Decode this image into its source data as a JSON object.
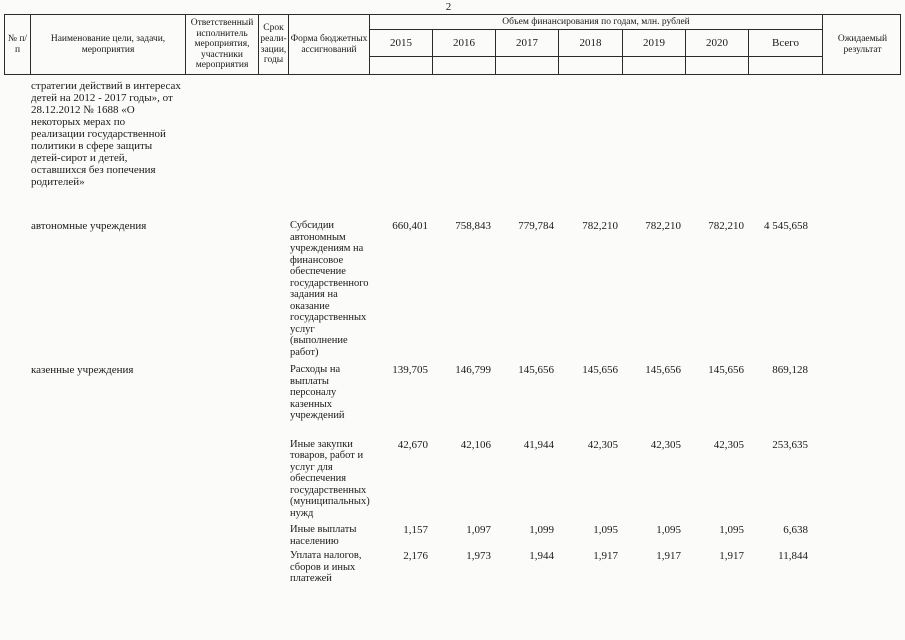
{
  "page": {
    "number": "2"
  },
  "table": {
    "col_headers": {
      "num": "№ п/п",
      "name": "Наименование цели, задачи, мероприятия",
      "executor": "Ответственный исполнитель мероприятия, участники мероприятия",
      "term": "Срок\nреали-\nзации,\nгоды",
      "form": "Форма бюджетных ассигнований",
      "financing_title": "Объем финансирования по годам, млн. рублей",
      "expected": "Ожидаемый результат"
    },
    "year_headers": [
      "2015",
      "2016",
      "2017",
      "2018",
      "2019",
      "2020",
      "Всего"
    ],
    "rows": [
      {
        "name": "стратегии действий в интересах детей на 2012 - 2017 годы», от 28.12.2012 № 1688 «О некоторых мерах по реализации государственной политики в сфере защиты детей-сирот и детей, оставшихся без попечения родителей»",
        "form": "",
        "values": [
          "",
          "",
          "",
          "",
          "",
          "",
          ""
        ]
      },
      {
        "name": "автономные учреждения",
        "form": "Субсидии автономным учреждениям на финансовое обеспечение государственного задания на оказание государственных услуг (выполнение работ)",
        "values": [
          "660,401",
          "758,843",
          "779,784",
          "782,210",
          "782,210",
          "782,210",
          "4 545,658"
        ]
      },
      {
        "name": "казенные учреждения",
        "form": "Расходы на выплаты персоналу казенных учреждений",
        "values": [
          "139,705",
          "146,799",
          "145,656",
          "145,656",
          "145,656",
          "145,656",
          "869,128"
        ]
      },
      {
        "name": "",
        "form": "Иные закупки товаров, работ и услуг для обеспечения государственных (муниципальных) нужд",
        "values": [
          "42,670",
          "42,106",
          "41,944",
          "42,305",
          "42,305",
          "42,305",
          "253,635"
        ]
      },
      {
        "name": "",
        "form": "Иные выплаты населению",
        "values": [
          "1,157",
          "1,097",
          "1,099",
          "1,095",
          "1,095",
          "1,095",
          "6,638"
        ]
      },
      {
        "name": "",
        "form": "Уплата налогов, сборов и иных платежей",
        "values": [
          "2,176",
          "1,973",
          "1,944",
          "1,917",
          "1,917",
          "1,917",
          "11,844"
        ]
      }
    ]
  }
}
